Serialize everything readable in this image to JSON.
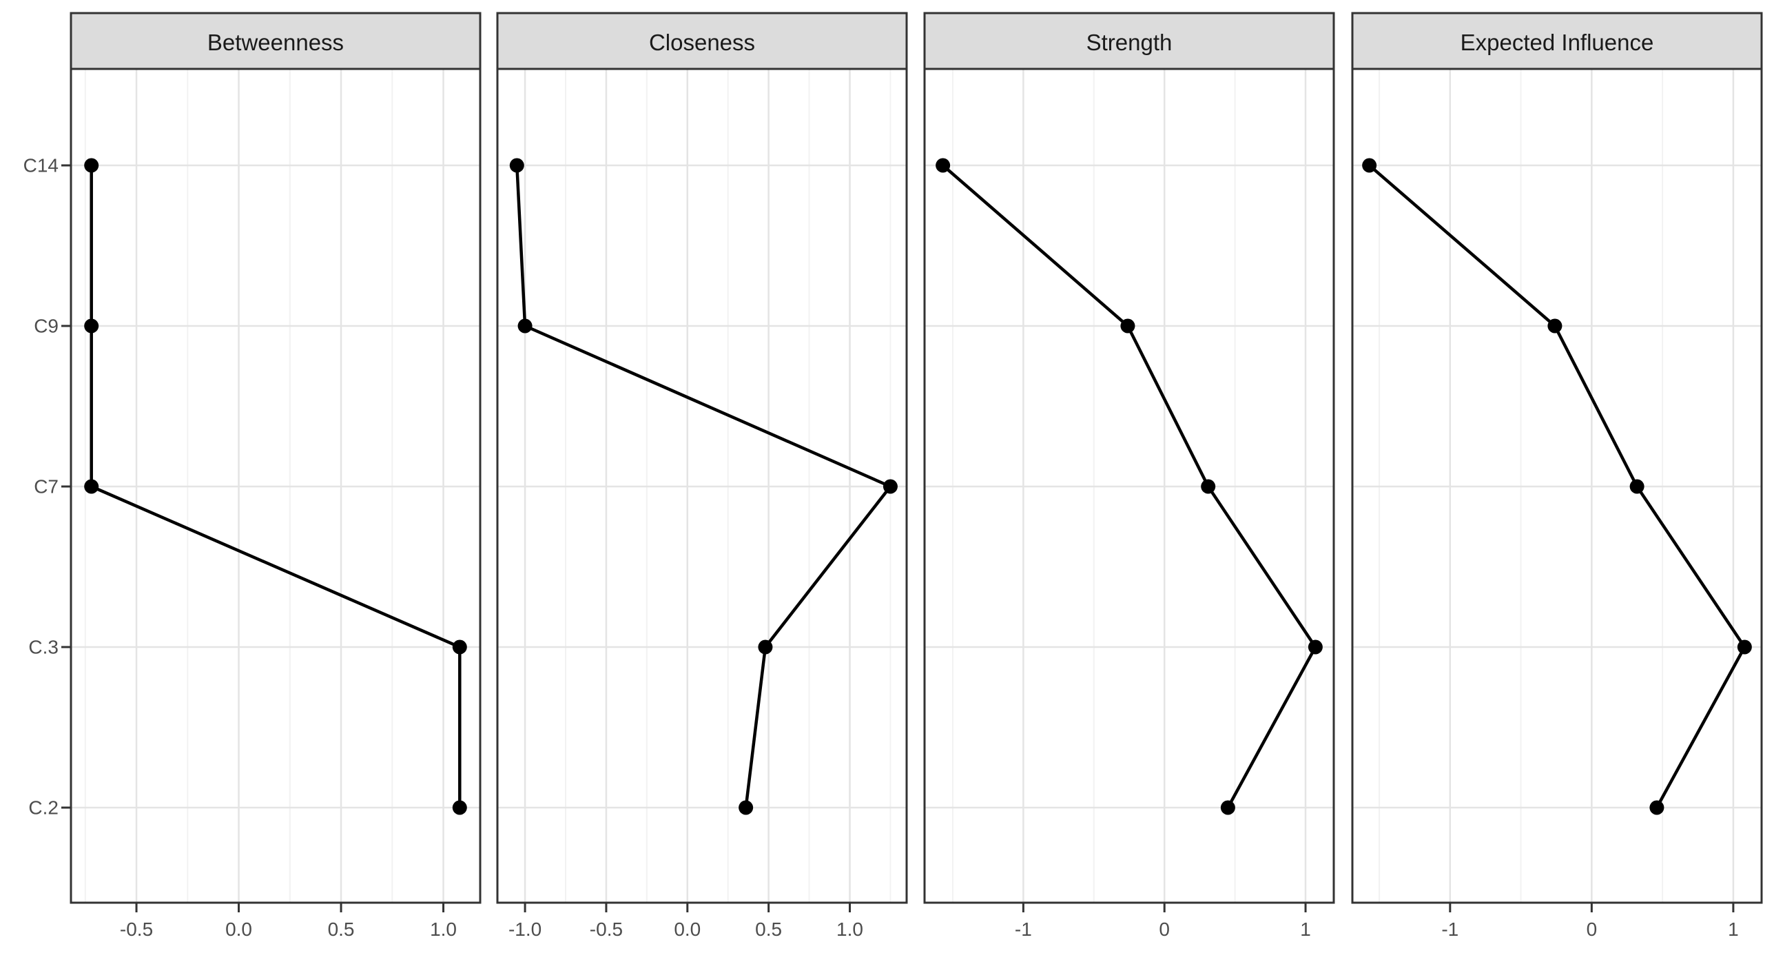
{
  "figure": {
    "background": "#ffffff",
    "strip_fill": "#dcdcdc",
    "strip_border": "#333333",
    "strip_text_color": "#1a1a1a",
    "panel_border": "#333333",
    "panel_fill": "#ffffff",
    "grid_major_color": "#e4e4e4",
    "grid_minor_color": "#f2f2f2",
    "tick_color": "#333333",
    "axis_text_color": "#4d4d4d",
    "point_color": "#000000",
    "line_color": "#000000"
  },
  "chart_data": {
    "type": "line",
    "subtype": "faceted-centrality-dot-line-plot",
    "orientation": "horizontal",
    "grid": true,
    "legend": "none",
    "categories": [
      "C14",
      "C9",
      "C7",
      "C.3",
      "C.2"
    ],
    "ylabel": "",
    "xlabel": "",
    "panels": [
      {
        "title": "Betweenness",
        "values": [
          -0.72,
          -0.72,
          -0.72,
          1.08,
          1.08
        ],
        "xlim": [
          -0.82,
          1.18
        ],
        "ticks": [
          -0.5,
          0.0,
          0.5,
          1.0
        ],
        "tick_labels": [
          "-0.5",
          "0.0",
          "0.5",
          "1.0"
        ]
      },
      {
        "title": "Closeness",
        "values": [
          -1.05,
          -1.0,
          1.25,
          0.48,
          0.36
        ],
        "xlim": [
          -1.17,
          1.35
        ],
        "ticks": [
          -1.0,
          -0.5,
          0.0,
          0.5,
          1.0
        ],
        "tick_labels": [
          "-1.0",
          "-0.5",
          "0.0",
          "0.5",
          "1.0"
        ]
      },
      {
        "title": "Strength",
        "values": [
          -1.57,
          -0.26,
          0.31,
          1.07,
          0.45
        ],
        "xlim": [
          -1.7,
          1.2
        ],
        "ticks": [
          -1,
          0,
          1
        ],
        "tick_labels": [
          "-1",
          "0",
          "1"
        ]
      },
      {
        "title": "Expected Influence",
        "values": [
          -1.57,
          -0.26,
          0.32,
          1.08,
          0.46
        ],
        "xlim": [
          -1.69,
          1.2
        ],
        "ticks": [
          -1,
          0,
          1
        ],
        "tick_labels": [
          "-1",
          "0",
          "1"
        ]
      }
    ]
  }
}
